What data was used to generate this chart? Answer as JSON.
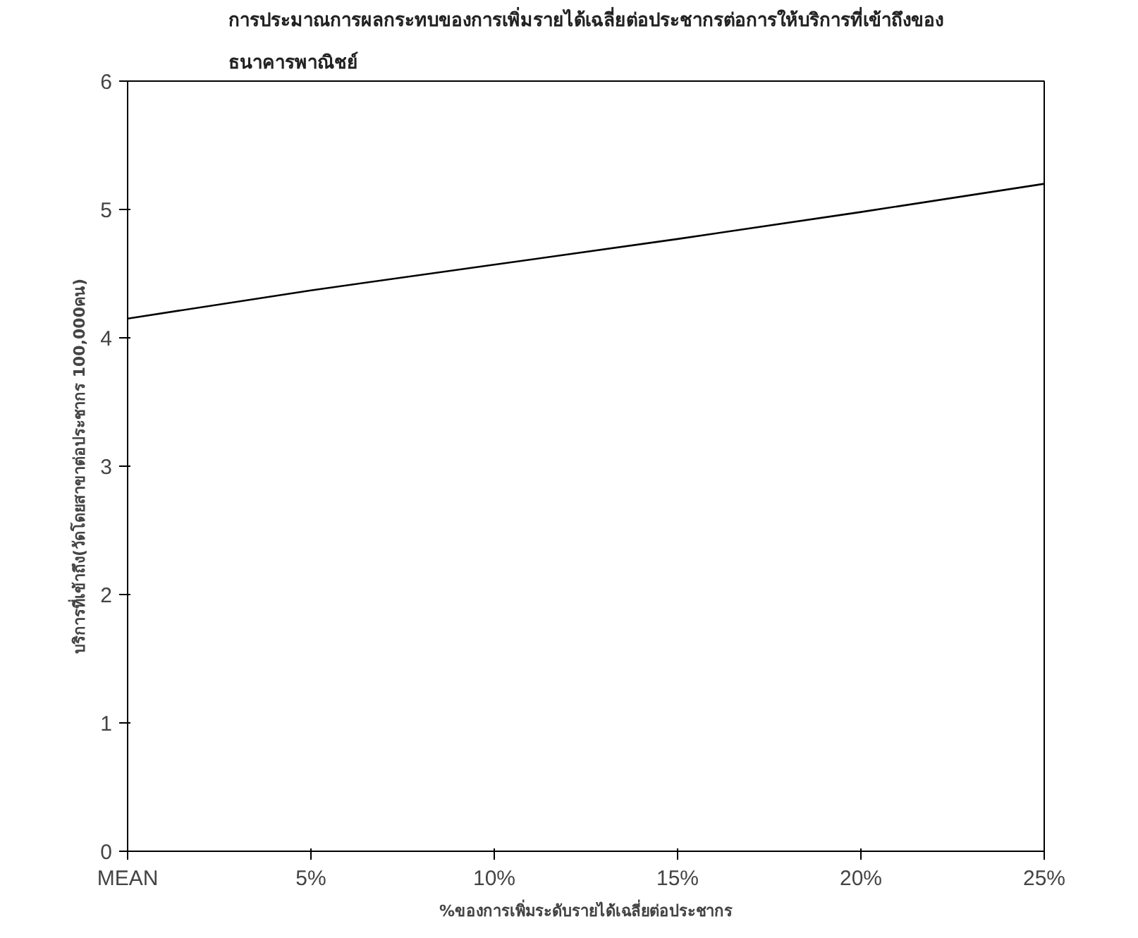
{
  "chart_data": {
    "type": "line",
    "title": "การประมาณการผลกระทบของการเพิ่มรายได้เฉลี่ยต่อประชากรต่อการให้บริการที่เข้าถึงของ\nธนาคารพาณิชย์",
    "xlabel": "%ของการเพิ่มระดับรายได้เฉลี่ยต่อประชากร",
    "ylabel": "บริการที่เข้าถึง(วัดโดยสาขาต่อประชากร 100,000คน)",
    "categories": [
      "MEAN",
      "5%",
      "10%",
      "15%",
      "20%",
      "25%"
    ],
    "series": [
      {
        "color": "#000000",
        "values": [
          4.15,
          4.37,
          4.57,
          4.77,
          4.98,
          5.2
        ]
      }
    ],
    "ylim": [
      0,
      6
    ],
    "yticks": [
      0,
      1,
      2,
      3,
      4,
      5,
      6
    ],
    "grid": false,
    "marker": "none",
    "line_style": "solid"
  }
}
